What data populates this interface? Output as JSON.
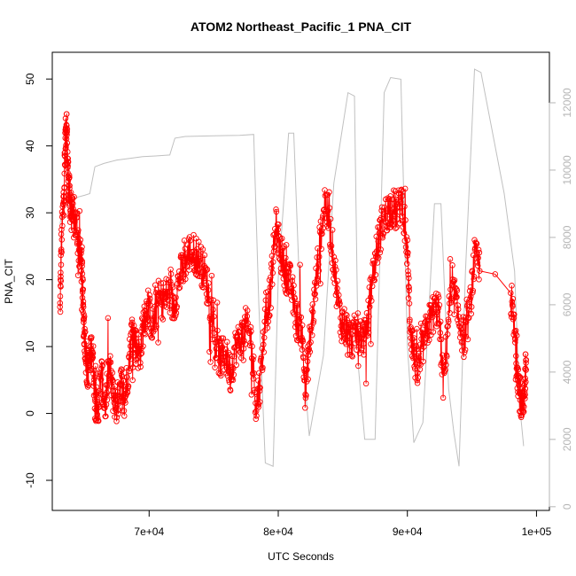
{
  "chart_data": {
    "type": "scatter",
    "title": "ATOM2 Northeast_Pacific_1 PNA_CIT",
    "xlabel": "UTC Seconds",
    "ylabel": "PNA_CIT",
    "xlim": [
      62500,
      101000
    ],
    "ylim": [
      -14.5,
      54.0
    ],
    "y2lim": [
      -110,
      13500
    ],
    "x_ticks": [
      {
        "value": 70000,
        "label": "7e+04"
      },
      {
        "value": 80000,
        "label": "8e+04"
      },
      {
        "value": 90000,
        "label": "9e+04"
      },
      {
        "value": 100000,
        "label": "1e+05"
      }
    ],
    "y_ticks": [
      {
        "value": -10,
        "label": "-10"
      },
      {
        "value": 0,
        "label": "0"
      },
      {
        "value": 10,
        "label": "10"
      },
      {
        "value": 20,
        "label": "20"
      },
      {
        "value": 30,
        "label": "30"
      },
      {
        "value": 40,
        "label": "40"
      },
      {
        "value": 50,
        "label": "50"
      }
    ],
    "y2_ticks": [
      {
        "value": 0,
        "label": "0"
      },
      {
        "value": 2000,
        "label": "2000"
      },
      {
        "value": 4000,
        "label": "4000"
      },
      {
        "value": 6000,
        "label": "6000"
      },
      {
        "value": 8000,
        "label": "8000"
      },
      {
        "value": 10000,
        "label": "10000"
      },
      {
        "value": 12000,
        "label": "12000"
      }
    ],
    "series": [
      {
        "color": "#ff0000",
        "marker": "open-circle",
        "connected": true,
        "anchors": [
          [
            63100,
            15
          ],
          [
            63200,
            25
          ],
          [
            63400,
            33
          ],
          [
            63500,
            40
          ],
          [
            63600,
            44
          ],
          [
            63700,
            37
          ],
          [
            63800,
            33
          ],
          [
            63900,
            31
          ],
          [
            64100,
            29
          ],
          [
            64400,
            28
          ],
          [
            64600,
            24
          ],
          [
            64800,
            22
          ],
          [
            64900,
            15
          ],
          [
            65000,
            12
          ],
          [
            65200,
            6
          ],
          [
            65400,
            8
          ],
          [
            65600,
            10
          ],
          [
            65800,
            3
          ],
          [
            66000,
            0
          ],
          [
            66300,
            6
          ],
          [
            66600,
            1
          ],
          [
            66900,
            7
          ],
          [
            67200,
            3
          ],
          [
            67500,
            1
          ],
          [
            67800,
            5
          ],
          [
            68100,
            2
          ],
          [
            68400,
            7
          ],
          [
            68700,
            13
          ],
          [
            69000,
            10
          ],
          [
            69300,
            9
          ],
          [
            69600,
            14
          ],
          [
            69900,
            16
          ],
          [
            70300,
            13
          ],
          [
            70700,
            17
          ],
          [
            71100,
            17
          ],
          [
            71500,
            18
          ],
          [
            71900,
            16
          ],
          [
            72300,
            20
          ],
          [
            72700,
            22
          ],
          [
            73100,
            24
          ],
          [
            73500,
            24
          ],
          [
            73900,
            23
          ],
          [
            74300,
            21
          ],
          [
            74700,
            17
          ],
          [
            75100,
            11
          ],
          [
            75500,
            8
          ],
          [
            75900,
            9
          ],
          [
            76300,
            6
          ],
          [
            76700,
            10
          ],
          [
            77100,
            11
          ],
          [
            77500,
            13
          ],
          [
            77900,
            11
          ],
          [
            78300,
            1
          ],
          [
            78600,
            5
          ],
          [
            79000,
            14
          ],
          [
            79400,
            18
          ],
          [
            79800,
            28
          ],
          [
            80200,
            24
          ],
          [
            80600,
            21
          ],
          [
            81000,
            19
          ],
          [
            81400,
            14
          ],
          [
            81800,
            13
          ],
          [
            82100,
            3
          ],
          [
            82400,
            10
          ],
          [
            82800,
            17
          ],
          [
            83200,
            25
          ],
          [
            83600,
            32
          ],
          [
            84000,
            28
          ],
          [
            84400,
            21
          ],
          [
            84800,
            14
          ],
          [
            85200,
            13
          ],
          [
            85600,
            11
          ],
          [
            86000,
            12
          ],
          [
            86400,
            12
          ],
          [
            86800,
            11
          ],
          [
            87200,
            19
          ],
          [
            87600,
            24
          ],
          [
            88000,
            28
          ],
          [
            88400,
            30
          ],
          [
            88800,
            31
          ],
          [
            89200,
            30
          ],
          [
            89600,
            32
          ],
          [
            90000,
            24
          ],
          [
            90200,
            14
          ],
          [
            90500,
            9
          ],
          [
            90800,
            6
          ],
          [
            91200,
            10
          ],
          [
            91600,
            13
          ],
          [
            92000,
            15
          ],
          [
            92400,
            16
          ],
          [
            92800,
            4
          ],
          [
            93200,
            15
          ],
          [
            93600,
            18
          ],
          [
            94000,
            14
          ],
          [
            94400,
            11
          ],
          [
            94800,
            15
          ],
          [
            95200,
            23
          ],
          [
            95600,
            22
          ],
          [
            98000,
            18
          ],
          [
            98300,
            12
          ],
          [
            98500,
            7
          ],
          [
            98700,
            3
          ],
          [
            98900,
            1
          ],
          [
            99100,
            4
          ],
          [
            99200,
            8
          ]
        ]
      },
      {
        "color": "#c0c0c0",
        "axis": "right",
        "points": [
          [
            63100,
            8400
          ],
          [
            63300,
            8800
          ],
          [
            63600,
            9000
          ],
          [
            64500,
            9200
          ],
          [
            65000,
            9250
          ],
          [
            65400,
            9300
          ],
          [
            65800,
            10100
          ],
          [
            66500,
            10200
          ],
          [
            67500,
            10300
          ],
          [
            68500,
            10350
          ],
          [
            69500,
            10400
          ],
          [
            70500,
            10420
          ],
          [
            71600,
            10450
          ],
          [
            72000,
            10950
          ],
          [
            72800,
            11000
          ],
          [
            75000,
            11020
          ],
          [
            77000,
            11030
          ],
          [
            78100,
            11060
          ],
          [
            78500,
            6000
          ],
          [
            79000,
            1300
          ],
          [
            79600,
            1200
          ],
          [
            80000,
            6800
          ],
          [
            80800,
            11100
          ],
          [
            81200,
            11100
          ],
          [
            81800,
            5000
          ],
          [
            82400,
            2100
          ],
          [
            83500,
            4500
          ],
          [
            84300,
            9600
          ],
          [
            85400,
            12300
          ],
          [
            85900,
            12200
          ],
          [
            86200,
            4200
          ],
          [
            86700,
            2000
          ],
          [
            87500,
            2000
          ],
          [
            88200,
            12300
          ],
          [
            88700,
            12750
          ],
          [
            89500,
            12700
          ],
          [
            90000,
            4800
          ],
          [
            90500,
            1900
          ],
          [
            91200,
            2500
          ],
          [
            92100,
            9000
          ],
          [
            92600,
            9000
          ],
          [
            93200,
            3500
          ],
          [
            93600,
            2200
          ],
          [
            94000,
            1200
          ],
          [
            94500,
            7000
          ],
          [
            95200,
            13000
          ],
          [
            95700,
            12900
          ],
          [
            97500,
            9300
          ],
          [
            98300,
            7000
          ],
          [
            98700,
            3000
          ],
          [
            99000,
            1800
          ]
        ]
      }
    ],
    "grid": false,
    "legend": "none"
  }
}
